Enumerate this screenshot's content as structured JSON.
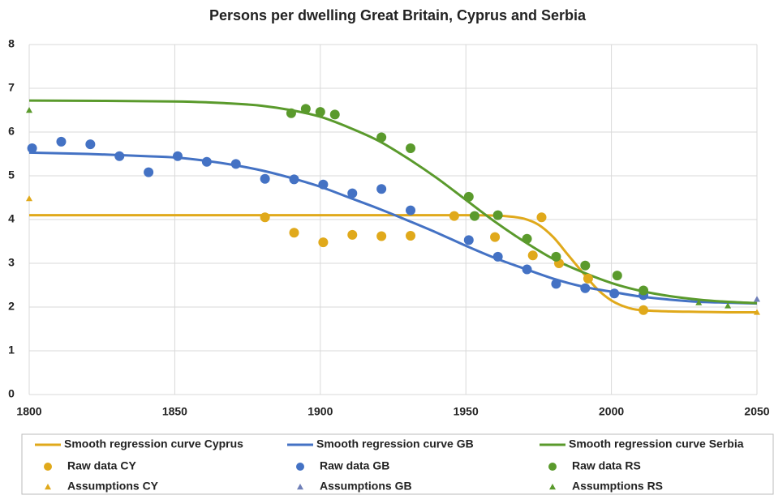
{
  "chart_data": {
    "type": "line",
    "title": "Persons per dwelling Great Britain, Cyprus and Serbia",
    "xlim": [
      1800,
      2050
    ],
    "xticks": [
      1800,
      1850,
      1900,
      1950,
      2000,
      2050
    ],
    "ylim": [
      0,
      8
    ],
    "yticks": [
      0,
      1,
      2,
      3,
      4,
      5,
      6,
      7,
      8
    ],
    "grid": true,
    "legend": "bottom",
    "series": [
      {
        "name": "Smooth regression curve Cyprus",
        "type": "line",
        "color": "#e0a91b",
        "x": [
          1800,
          1850,
          1900,
          1950,
          1960,
          1965,
          1970,
          1975,
          1980,
          1985,
          1990,
          1995,
          2000,
          2005,
          2010,
          2020,
          2030,
          2040,
          2050
        ],
        "values": [
          4.1,
          4.1,
          4.1,
          4.1,
          4.09,
          4.07,
          4.02,
          3.88,
          3.6,
          3.2,
          2.8,
          2.42,
          2.15,
          2.0,
          1.93,
          1.9,
          1.89,
          1.88,
          1.88
        ]
      },
      {
        "name": "Smooth regression curve GB",
        "type": "line",
        "color": "#4472c4",
        "x": [
          1800,
          1820,
          1840,
          1850,
          1860,
          1870,
          1880,
          1890,
          1900,
          1910,
          1920,
          1930,
          1940,
          1950,
          1960,
          1970,
          1980,
          1990,
          2000,
          2010,
          2020,
          2030,
          2040,
          2050
        ],
        "values": [
          5.53,
          5.5,
          5.45,
          5.42,
          5.35,
          5.25,
          5.12,
          4.95,
          4.75,
          4.5,
          4.25,
          3.98,
          3.7,
          3.4,
          3.12,
          2.88,
          2.65,
          2.47,
          2.35,
          2.24,
          2.17,
          2.12,
          2.1,
          2.08
        ]
      },
      {
        "name": "Smooth regression curve Serbia",
        "type": "line",
        "color": "#5a9a2c",
        "x": [
          1800,
          1850,
          1870,
          1880,
          1890,
          1900,
          1910,
          1920,
          1930,
          1940,
          1950,
          1960,
          1970,
          1980,
          1990,
          2000,
          2010,
          2020,
          2030,
          2040,
          2050
        ],
        "values": [
          6.72,
          6.7,
          6.65,
          6.6,
          6.5,
          6.35,
          6.1,
          5.8,
          5.4,
          4.95,
          4.45,
          3.95,
          3.5,
          3.1,
          2.8,
          2.55,
          2.37,
          2.25,
          2.17,
          2.12,
          2.09
        ]
      },
      {
        "name": "Raw data CY",
        "type": "scatter",
        "marker": "circle",
        "color": "#e0a91b",
        "x": [
          1881,
          1891,
          1901,
          1911,
          1921,
          1931,
          1946,
          1960,
          1973,
          1976,
          1982,
          1992,
          2011
        ],
        "values": [
          4.05,
          3.7,
          3.48,
          3.65,
          3.62,
          3.63,
          4.08,
          3.6,
          3.18,
          4.05,
          3.0,
          2.65,
          1.93
        ]
      },
      {
        "name": "Raw data GB",
        "type": "scatter",
        "marker": "circle",
        "color": "#4472c4",
        "x": [
          1801,
          1811,
          1821,
          1831,
          1841,
          1851,
          1861,
          1871,
          1881,
          1891,
          1901,
          1911,
          1921,
          1931,
          1951,
          1961,
          1971,
          1981,
          1991,
          2001,
          2011
        ],
        "values": [
          5.63,
          5.78,
          5.72,
          5.45,
          5.08,
          5.45,
          5.32,
          5.27,
          4.93,
          4.92,
          4.8,
          4.6,
          4.7,
          4.21,
          3.53,
          3.15,
          2.86,
          2.53,
          2.43,
          2.31,
          2.27
        ]
      },
      {
        "name": "Raw data RS",
        "type": "scatter",
        "marker": "circle",
        "color": "#5a9a2c",
        "x": [
          1890,
          1895,
          1900,
          1905,
          1921,
          1931,
          1951,
          1953,
          1961,
          1971,
          1981,
          1991,
          2002,
          2011
        ],
        "values": [
          6.43,
          6.53,
          6.46,
          6.4,
          5.88,
          5.63,
          4.52,
          4.08,
          4.1,
          3.56,
          3.15,
          2.95,
          2.72,
          2.38
        ]
      },
      {
        "name": "Assumptions CY",
        "type": "scatter",
        "marker": "triangle",
        "color": "#e0a91b",
        "x": [
          1800,
          2050
        ],
        "values": [
          4.48,
          1.88
        ]
      },
      {
        "name": "Assumptions GB",
        "type": "scatter",
        "marker": "triangle",
        "color": "#6f7fb8",
        "x": [
          2050
        ],
        "values": [
          2.18
        ]
      },
      {
        "name": "Assumptions RS",
        "type": "scatter",
        "marker": "triangle",
        "color": "#5a9a2c",
        "x": [
          1800,
          2030,
          2040
        ],
        "values": [
          6.5,
          2.1,
          2.03
        ]
      }
    ]
  }
}
